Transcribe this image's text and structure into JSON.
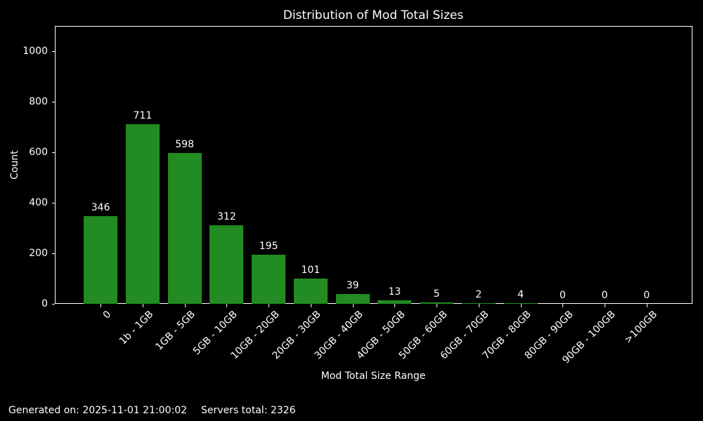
{
  "chart_data": {
    "type": "bar",
    "title": "Distribution of Mod Total Sizes",
    "xlabel": "Mod Total Size Range",
    "ylabel": "Count",
    "categories": [
      "0",
      "1b - 1GB",
      "1GB - 5GB",
      "5GB - 10GB",
      "10GB - 20GB",
      "20GB - 30GB",
      "30GB - 40GB",
      "40GB - 50GB",
      "50GB - 60GB",
      "60GB - 70GB",
      "70GB - 80GB",
      "80GB - 90GB",
      "90GB - 100GB",
      ">100GB"
    ],
    "values": [
      346,
      711,
      598,
      312,
      195,
      101,
      39,
      13,
      5,
      2,
      4,
      0,
      0,
      0
    ],
    "yticks": [
      0,
      200,
      400,
      600,
      800,
      1000
    ],
    "ylim": [
      0,
      1100
    ],
    "grid": false,
    "legend_position": "none",
    "value_labels_shown": true,
    "bar_color": "#228B22",
    "background_color": "#000000",
    "text_color": "#ffffff"
  },
  "footer": {
    "generated": "Generated on: 2025-11-01 21:00:02",
    "servers_total": "Servers total: 2326"
  }
}
